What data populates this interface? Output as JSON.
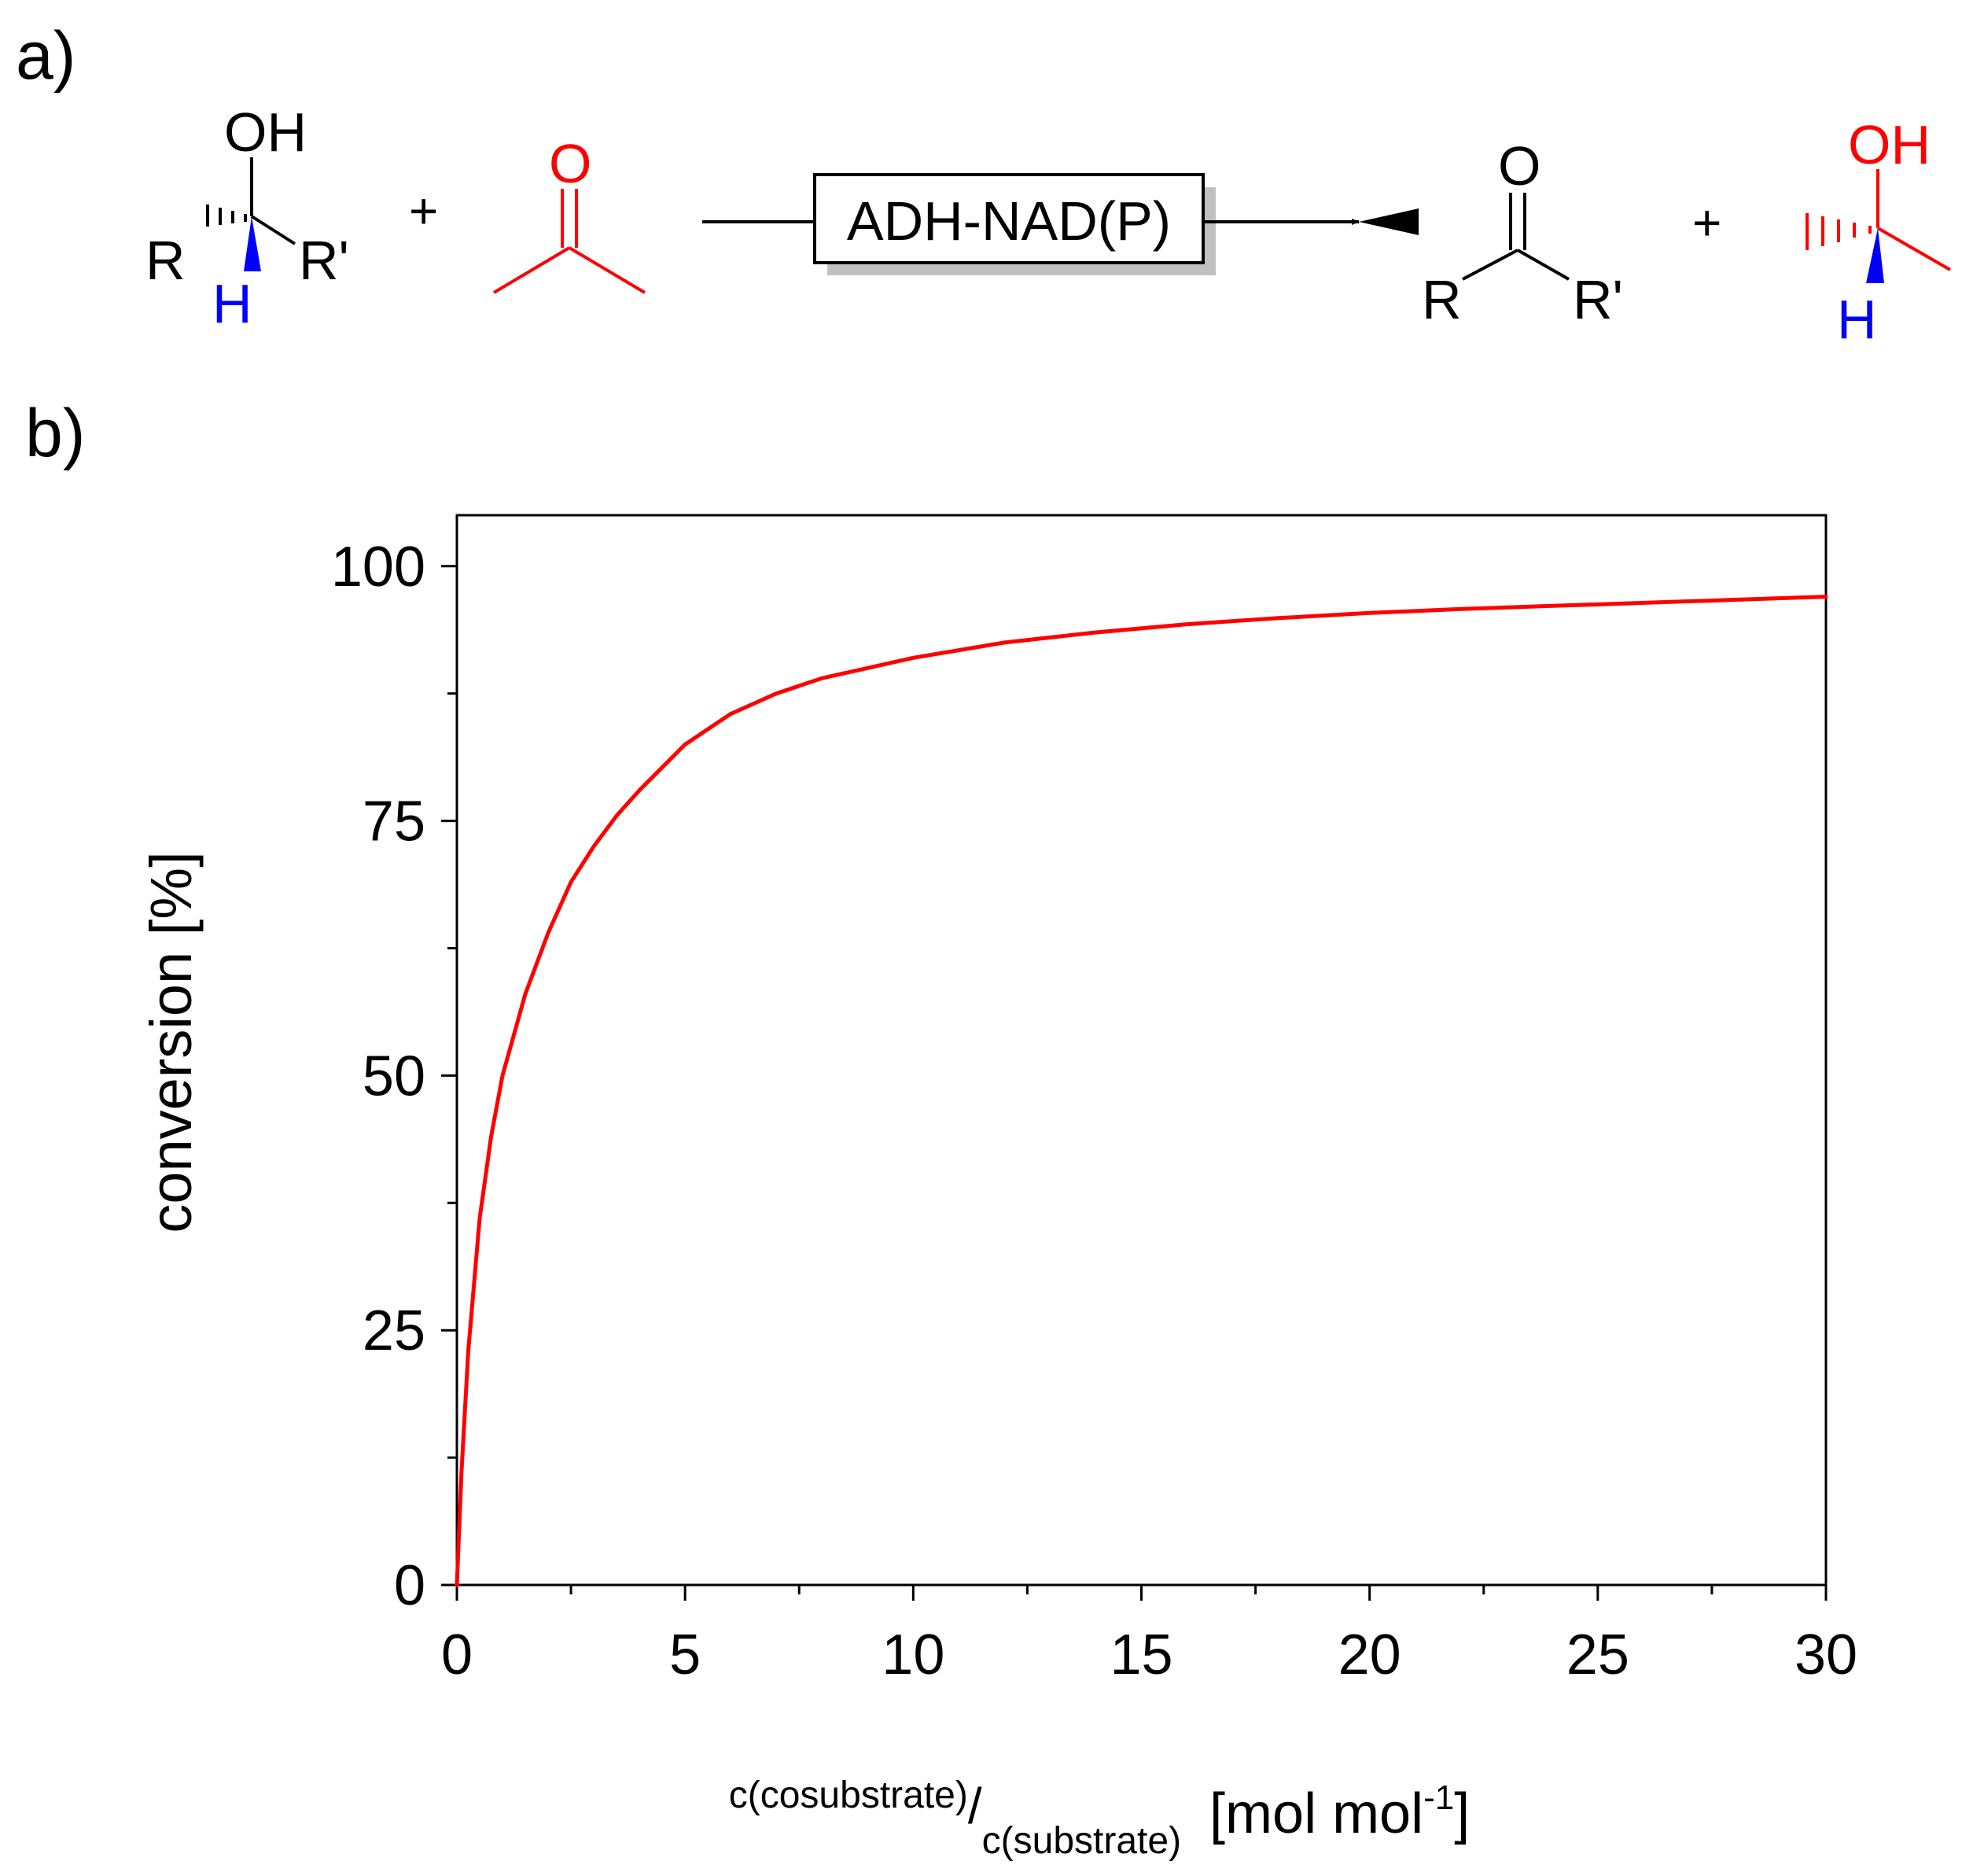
{
  "panels": {
    "a": "a)",
    "b": "b)"
  },
  "reaction": {
    "substrate": {
      "oh": "OH",
      "r": "R",
      "r_prime": "R'",
      "h": "H"
    },
    "plus_1": "+",
    "cosubstrate": {
      "o": "O"
    },
    "catalyst": "ADH-NAD(P)",
    "product": {
      "o": "O",
      "r": "R",
      "r_prime": "R'"
    },
    "plus_2": "+",
    "coproduct": {
      "oh": "OH",
      "h": "H"
    },
    "colors": {
      "cosubstrate": "#ff0000",
      "hydrogen": "#0000ff",
      "black": "#000000"
    }
  },
  "chart_data": {
    "type": "line",
    "title": "",
    "ylabel": "conversion [%]",
    "xlabel": {
      "numerator": "c(cosubstrate)",
      "slash": "/",
      "denominator": "c(substrate)",
      "unit_open": "[mol mol",
      "unit_exp": "-1",
      "unit_close": "]"
    },
    "xlim": [
      0,
      30
    ],
    "ylim": [
      0,
      105
    ],
    "x_ticks": [
      "0",
      "5",
      "10",
      "15",
      "20",
      "25",
      "30"
    ],
    "y_ticks": [
      "0",
      "25",
      "50",
      "75",
      "100"
    ],
    "grid": false,
    "legend": "none",
    "series": [
      {
        "color": "#ff0000",
        "x": [
          0,
          0.1,
          0.25,
          0.5,
          0.75,
          1,
          1.5,
          2,
          2.5,
          3,
          3.5,
          4,
          5,
          6,
          7,
          8,
          9,
          10,
          12,
          14,
          16,
          18,
          20,
          22,
          24,
          26,
          28,
          30
        ],
        "y": [
          0,
          11,
          23,
          36,
          44,
          50,
          58,
          64,
          69,
          72.5,
          75.5,
          78,
          82.5,
          85.5,
          87.5,
          89,
          90,
          91,
          92.5,
          93.5,
          94.3,
          94.9,
          95.4,
          95.8,
          96.1,
          96.4,
          96.7,
          97
        ]
      }
    ]
  }
}
